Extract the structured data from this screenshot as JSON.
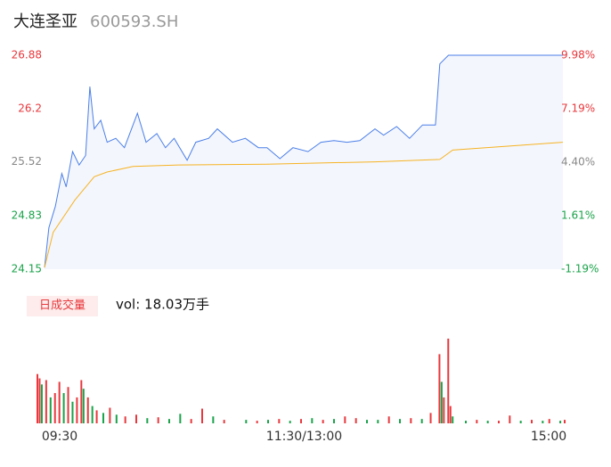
{
  "chart_data": [
    {
      "type": "line",
      "title": "大连圣亚",
      "subtitle": "600593.SH",
      "xlim": [
        0,
        240
      ],
      "ylim": [
        24.15,
        26.88
      ],
      "y2lim": [
        -1.19,
        9.98
      ],
      "yticks": [
        24.15,
        24.83,
        25.52,
        26.2,
        26.88
      ],
      "ytick_colors": [
        "#1aa34a",
        "#1aa34a",
        "#888888",
        "#e8383d",
        "#e8383d"
      ],
      "y2ticks": [
        {
          "value": -1.19,
          "label": "-1.19%"
        },
        {
          "value": 1.61,
          "label": "1.61%"
        },
        {
          "value": 4.4,
          "label": "4.40%"
        },
        {
          "value": 7.19,
          "label": "7.19%"
        },
        {
          "value": 9.98,
          "label": "9.98%"
        }
      ],
      "area_color": "#f4f6fd",
      "series": [
        {
          "color": "#4a7fe8",
          "x": [
            0,
            2,
            5,
            8,
            10,
            13,
            16,
            19,
            21,
            23,
            26,
            29,
            33,
            37,
            43,
            47,
            52,
            56,
            60,
            66,
            70,
            76,
            80,
            87,
            93,
            99,
            103,
            109,
            115,
            122,
            128,
            134,
            140,
            146,
            153,
            157,
            163,
            169,
            175,
            181,
            183,
            187,
            240
          ],
          "values": [
            24.17,
            24.68,
            24.95,
            25.37,
            25.2,
            25.65,
            25.48,
            25.6,
            26.48,
            25.94,
            26.05,
            25.77,
            25.82,
            25.7,
            26.14,
            25.77,
            25.88,
            25.7,
            25.82,
            25.54,
            25.77,
            25.82,
            25.94,
            25.77,
            25.82,
            25.7,
            25.7,
            25.56,
            25.7,
            25.65,
            25.77,
            25.79,
            25.77,
            25.79,
            25.94,
            25.86,
            25.97,
            25.82,
            25.99,
            25.99,
            26.77,
            26.88,
            26.88
          ]
        },
        {
          "color": "#f5b323",
          "x": [
            0,
            4,
            14,
            23,
            29,
            41,
            62,
            103,
            153,
            183,
            189,
            240
          ],
          "values": [
            24.17,
            24.62,
            25.03,
            25.33,
            25.39,
            25.46,
            25.48,
            25.49,
            25.52,
            25.55,
            25.67,
            25.77
          ]
        }
      ]
    },
    {
      "type": "bar",
      "title": "日成交量",
      "subtitle": "vol: 18.03万手",
      "xlim": [
        0,
        240
      ],
      "ylim": [
        0,
        100
      ],
      "xticks": [
        {
          "value": 0,
          "label": "09:30"
        },
        {
          "value": 120,
          "label": "11:30/13:00"
        },
        {
          "value": 240,
          "label": "15:00"
        }
      ],
      "x": [
        0,
        1,
        2,
        4,
        6,
        8,
        10,
        12,
        14,
        16,
        18,
        20,
        21,
        23,
        25,
        27,
        30,
        33,
        36,
        40,
        45,
        50,
        55,
        60,
        65,
        70,
        75,
        80,
        85,
        95,
        100,
        105,
        110,
        115,
        120,
        125,
        130,
        135,
        140,
        145,
        150,
        155,
        160,
        165,
        170,
        175,
        179,
        183,
        184,
        185,
        187,
        188,
        189,
        195,
        200,
        205,
        210,
        215,
        220,
        225,
        230,
        233,
        238,
        240
      ],
      "values": [
        57,
        52,
        45,
        50,
        30,
        35,
        48,
        35,
        42,
        25,
        30,
        50,
        40,
        30,
        20,
        15,
        12,
        18,
        10,
        8,
        10,
        6,
        7,
        5,
        11,
        5,
        17,
        8,
        4,
        4,
        3,
        4,
        5,
        3,
        5,
        6,
        4,
        5,
        8,
        6,
        4,
        4,
        8,
        5,
        6,
        5,
        12,
        80,
        48,
        30,
        98,
        20,
        8,
        3,
        4,
        3,
        3,
        9,
        3,
        4,
        3,
        5,
        3,
        4
      ],
      "colors": [
        "#e8383d",
        "#e8383d",
        "#1aa34a",
        "#e8383d",
        "#1aa34a",
        "#e8383d",
        "#e8383d",
        "#1aa34a",
        "#e8383d",
        "#1aa34a",
        "#e8383d",
        "#e8383d",
        "#1aa34a",
        "#e8383d",
        "#1aa34a",
        "#e8383d",
        "#1aa34a",
        "#e8383d",
        "#1aa34a",
        "#e8383d",
        "#e8383d",
        "#1aa34a",
        "#e8383d",
        "#1aa34a",
        "#1aa34a",
        "#e8383d",
        "#e8383d",
        "#1aa34a",
        "#e8383d",
        "#1aa34a",
        "#e8383d",
        "#1aa34a",
        "#e8383d",
        "#1aa34a",
        "#e8383d",
        "#1aa34a",
        "#e8383d",
        "#1aa34a",
        "#e8383d",
        "#e8383d",
        "#1aa34a",
        "#1aa34a",
        "#e8383d",
        "#1aa34a",
        "#e8383d",
        "#1aa34a",
        "#e8383d",
        "#e8383d",
        "#1aa34a",
        "#e8383d",
        "#e8383d",
        "#e8383d",
        "#1aa34a",
        "#1aa34a",
        "#e8383d",
        "#1aa34a",
        "#e8383d",
        "#e8383d",
        "#1aa34a",
        "#e8383d",
        "#1aa34a",
        "#e8383d",
        "#1aa34a",
        "#e8383d"
      ]
    }
  ]
}
